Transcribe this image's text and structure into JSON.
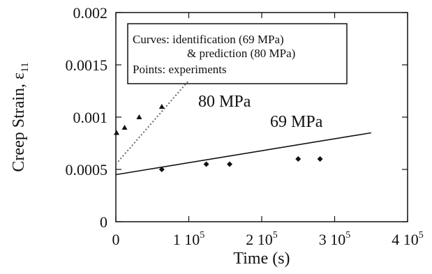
{
  "chart_data": {
    "type": "scatter",
    "xlabel": "Time (s)",
    "ylabel_main": "Creep Strain, ε",
    "ylabel_sub": "11",
    "xlim": [
      0,
      400000
    ],
    "ylim": [
      0,
      0.002
    ],
    "x_ticks": [
      {
        "value": 0,
        "label": "0",
        "exp": ""
      },
      {
        "value": 100000,
        "label": "1 10",
        "exp": "5"
      },
      {
        "value": 200000,
        "label": "2 10",
        "exp": "5"
      },
      {
        "value": 300000,
        "label": "3 10",
        "exp": "5"
      },
      {
        "value": 400000,
        "label": "4 10",
        "exp": "5"
      }
    ],
    "y_ticks": [
      {
        "value": 0,
        "label": "0"
      },
      {
        "value": 0.0005,
        "label": "0.0005"
      },
      {
        "value": 0.001,
        "label": "0.001"
      },
      {
        "value": 0.0015,
        "label": "0.0015"
      },
      {
        "value": 0.002,
        "label": "0.002"
      }
    ],
    "legend": [
      "Curves: identification (69 MPa)",
      "& prediction (80 MPa)",
      "Points: experiments"
    ],
    "series": [
      {
        "name": "80 MPa",
        "line": [
          [
            0,
            0.00055
          ],
          [
            100000,
            0.00135
          ]
        ],
        "line_style": "dotted",
        "points": [
          [
            1000,
            0.00085
          ],
          [
            12000,
            0.0009
          ],
          [
            32000,
            0.001
          ],
          [
            63000,
            0.0011
          ]
        ],
        "marker": "triangle"
      },
      {
        "name": "69 MPa",
        "line": [
          [
            0,
            0.00045
          ],
          [
            350000,
            0.00085
          ]
        ],
        "line_style": "solid",
        "points": [
          [
            63000,
            0.0005
          ],
          [
            124000,
            0.00055
          ],
          [
            156000,
            0.00055
          ],
          [
            250000,
            0.0006
          ],
          [
            280000,
            0.0006
          ]
        ],
        "marker": "diamond"
      }
    ]
  }
}
